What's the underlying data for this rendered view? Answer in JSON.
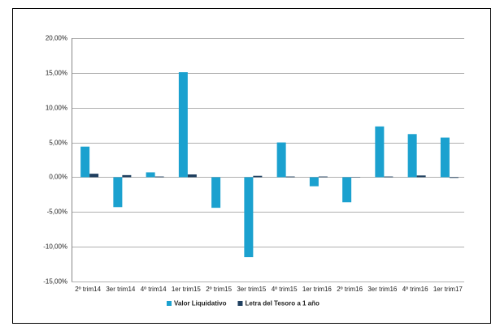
{
  "chart_data": {
    "type": "bar",
    "categories": [
      "2º trim14",
      "3er trim14",
      "4º trim14",
      "1er trim15",
      "2º trim15",
      "3er trim15",
      "4º trim15",
      "1er trim16",
      "2º trim16",
      "3er trim16",
      "4º trim16",
      "1er trim17"
    ],
    "series": [
      {
        "name": "Valor Liquidativo",
        "color": "#1ba1cf",
        "values": [
          4.4,
          -4.3,
          0.7,
          15.1,
          -4.4,
          -11.5,
          5.0,
          -1.3,
          -3.6,
          7.3,
          6.2,
          5.7
        ]
      },
      {
        "name": "Letra del Tesoro a 1 año",
        "color": "#1f3f5f",
        "values": [
          0.5,
          0.3,
          0.1,
          0.4,
          0.0,
          0.2,
          0.1,
          0.1,
          0.05,
          0.1,
          0.25,
          -0.1
        ]
      }
    ],
    "ylim": [
      -15,
      20
    ],
    "yticks": [
      {
        "value": -15,
        "label": "-15,00%"
      },
      {
        "value": -10,
        "label": "-10,00%"
      },
      {
        "value": -5,
        "label": "-5,00%"
      },
      {
        "value": 0,
        "label": "0,00%"
      },
      {
        "value": 5,
        "label": "5,00%"
      },
      {
        "value": 10,
        "label": "10,00%"
      },
      {
        "value": 15,
        "label": "15,00%"
      },
      {
        "value": 20,
        "label": "20,00%"
      }
    ],
    "grid": true,
    "legend": "bottom"
  }
}
